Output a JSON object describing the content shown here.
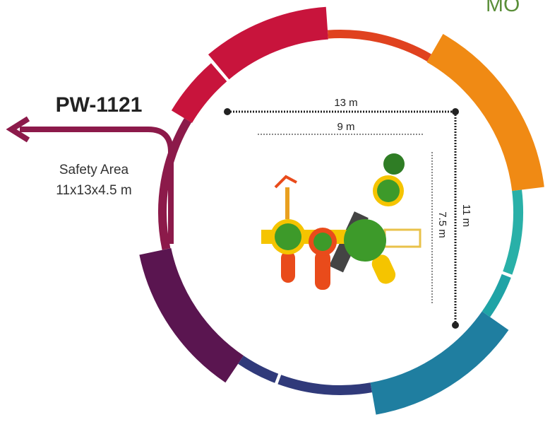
{
  "header": {
    "title": "MO"
  },
  "product": {
    "code": "PW-1121",
    "safety_label": "Safety Area",
    "safety_size": "11x13x4.5 m"
  },
  "dimensions": {
    "outer_width": "13 m",
    "inner_width": "9 m",
    "outer_depth": "11 m",
    "inner_depth": "7.5 m"
  }
}
